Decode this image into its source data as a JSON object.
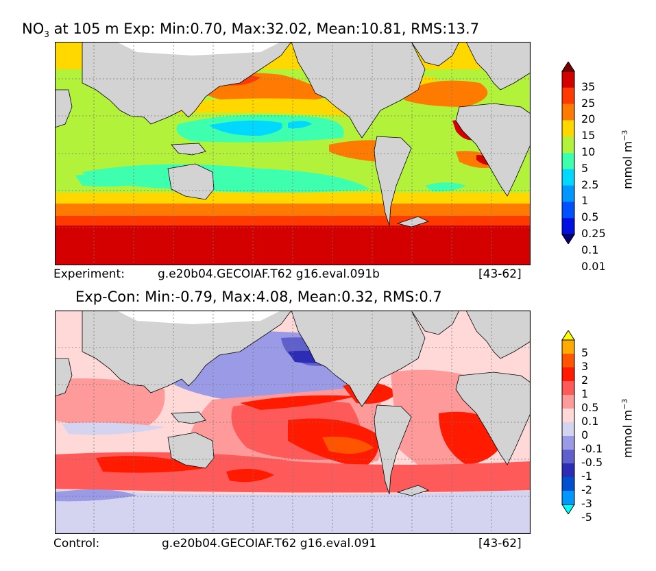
{
  "panels": [
    {
      "title_prefix": "NO",
      "title_sub": "3",
      "title_rest": " at 105 m Exp: Min:0.70, Max:32.02, Mean:10.81, RMS:13.7",
      "footer_left": "Experiment:",
      "footer_case": "g.e20b04.GECOIAF.T62 g16.eval.091b",
      "footer_years": "[43-62]",
      "colorbar": {
        "labels": [
          "35",
          "25",
          "20",
          "15",
          "10",
          "5",
          "2.5",
          "1",
          "0.5",
          "0.25",
          "0.1",
          "0.01"
        ],
        "colors": [
          "#7a0000",
          "#d40000",
          "#ff3a00",
          "#ff7a00",
          "#ffd800",
          "#b2f23a",
          "#3effae",
          "#00d8ff",
          "#0098ff",
          "#0050ff",
          "#0010e0",
          "#00007a"
        ],
        "unit_base": "mmol m",
        "unit_exp": "−3"
      }
    },
    {
      "title": "Exp-Con: Min:-0.79, Max:4.08, Mean:0.32, RMS:0.7",
      "footer_left": "Control:",
      "footer_case": "g.e20b04.GECOIAF.T62 g16.eval.091",
      "footer_years": "[43-62]",
      "colorbar": {
        "labels": [
          "5",
          "3",
          "2",
          "1",
          "0.5",
          "0.1",
          "0",
          "-0.1",
          "-0.5",
          "-1",
          "-2",
          "-3",
          "-5"
        ],
        "colors": [
          "#ffff00",
          "#ffaa00",
          "#ff5500",
          "#ff1a00",
          "#ff5a5a",
          "#ff9a9a",
          "#ffd8d8",
          "#d4d4f0",
          "#9a9ae6",
          "#6060cc",
          "#2c2cb4",
          "#0050d0",
          "#0098ff",
          "#00ffff"
        ],
        "unit_base": "mmol m",
        "unit_exp": "−3"
      }
    }
  ],
  "map_colors": {
    "land": "#d3d3d3",
    "ice": "#ffffff",
    "grid": "#777777"
  }
}
